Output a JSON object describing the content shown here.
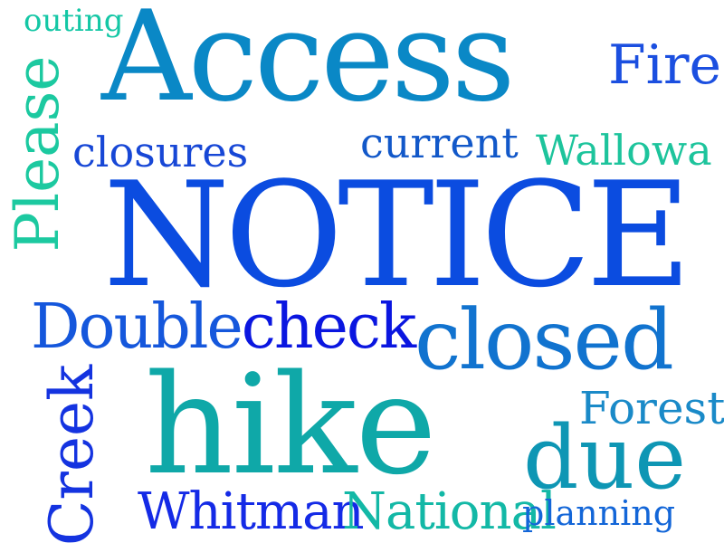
{
  "words": [
    {
      "text": "outing",
      "color": "#14c7a5"
    },
    {
      "text": "Access",
      "color": "#0a88c6"
    },
    {
      "text": "Fire",
      "color": "#1b4fe0"
    },
    {
      "text": "Please",
      "color": "#1cc9a0"
    },
    {
      "text": "closures",
      "color": "#1747d6"
    },
    {
      "text": "current",
      "color": "#1258c9"
    },
    {
      "text": "Wallowa",
      "color": "#1dc49c"
    },
    {
      "text": "NOTICE",
      "color": "#0b4ce0"
    },
    {
      "text": "Doublecheck",
      "color": "#1557dc"
    },
    {
      "text": "check",
      "color": "#0a16e0"
    },
    {
      "text": "closed",
      "color": "#1173cf"
    },
    {
      "text": "Creek",
      "color": "#1433e0"
    },
    {
      "text": "hike",
      "color": "#0fa8a8"
    },
    {
      "text": "Forest",
      "color": "#1a8ac8"
    },
    {
      "text": "due",
      "color": "#0e96b4"
    },
    {
      "text": "Whitman",
      "color": "#142ae6"
    },
    {
      "text": "National",
      "color": "#13b8a6"
    },
    {
      "text": "planning",
      "color": "#1366d8"
    }
  ]
}
